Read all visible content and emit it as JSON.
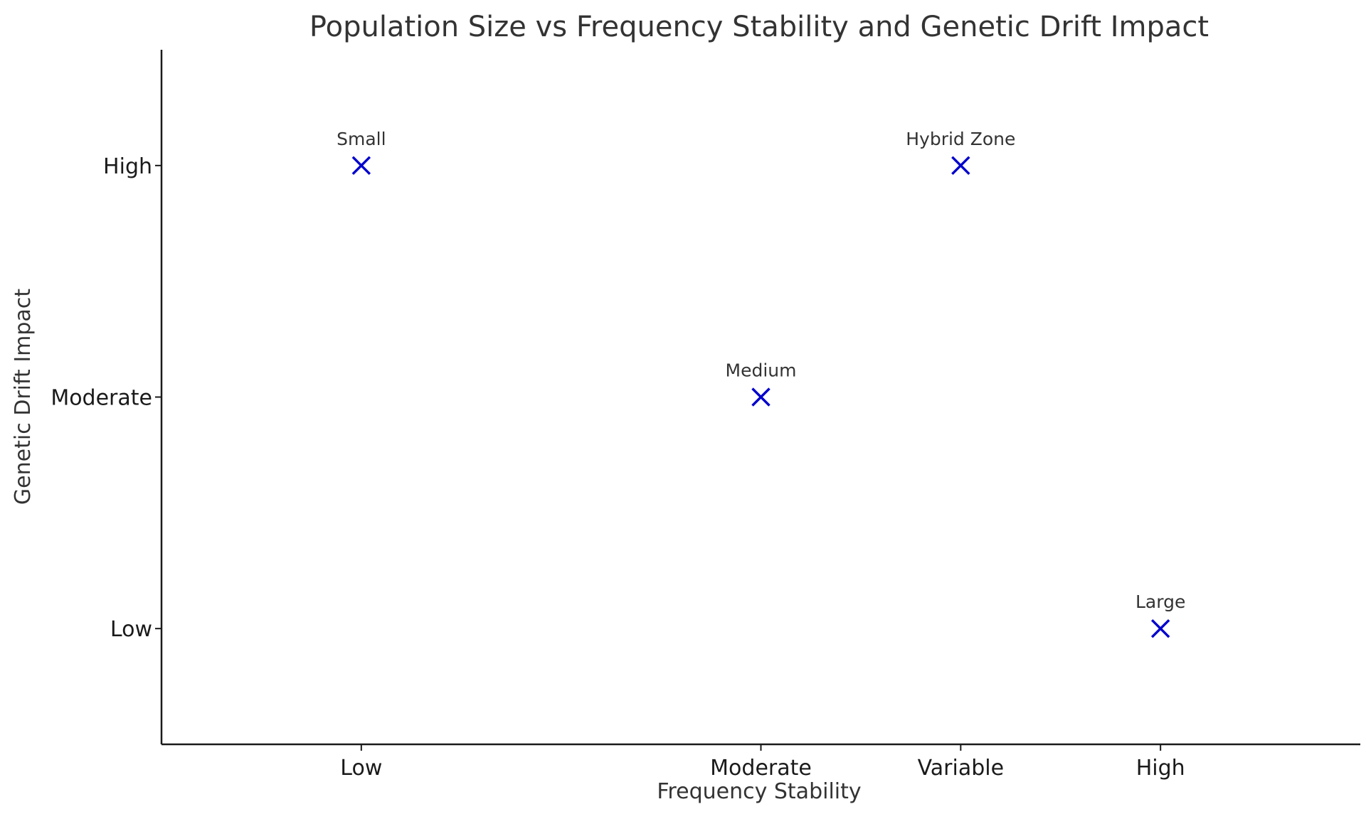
{
  "chart_data": {
    "type": "scatter",
    "title": "Population Size vs Frequency Stability and Genetic Drift Impact",
    "xlabel": "Frequency Stability",
    "ylabel": "Genetic Drift Impact",
    "x_ticks": [
      {
        "value": 0,
        "label": "Low"
      },
      {
        "value": 2,
        "label": "Moderate"
      },
      {
        "value": 3,
        "label": "Variable"
      },
      {
        "value": 4,
        "label": "High"
      }
    ],
    "y_ticks": [
      {
        "value": 0,
        "label": "Low"
      },
      {
        "value": 1,
        "label": "Moderate"
      },
      {
        "value": 2,
        "label": "High"
      }
    ],
    "xlim": [
      -1,
      5
    ],
    "ylim": [
      -0.5,
      2.5
    ],
    "grid": false,
    "legend": null,
    "marker": "x",
    "marker_color": "#0000cc",
    "points": [
      {
        "label": "Small",
        "x": "Low",
        "y": "High"
      },
      {
        "label": "Medium",
        "x": "Moderate",
        "y": "Moderate"
      },
      {
        "label": "Hybrid Zone",
        "x": "Variable",
        "y": "High"
      },
      {
        "label": "Large",
        "x": "High",
        "y": "Low"
      }
    ]
  }
}
